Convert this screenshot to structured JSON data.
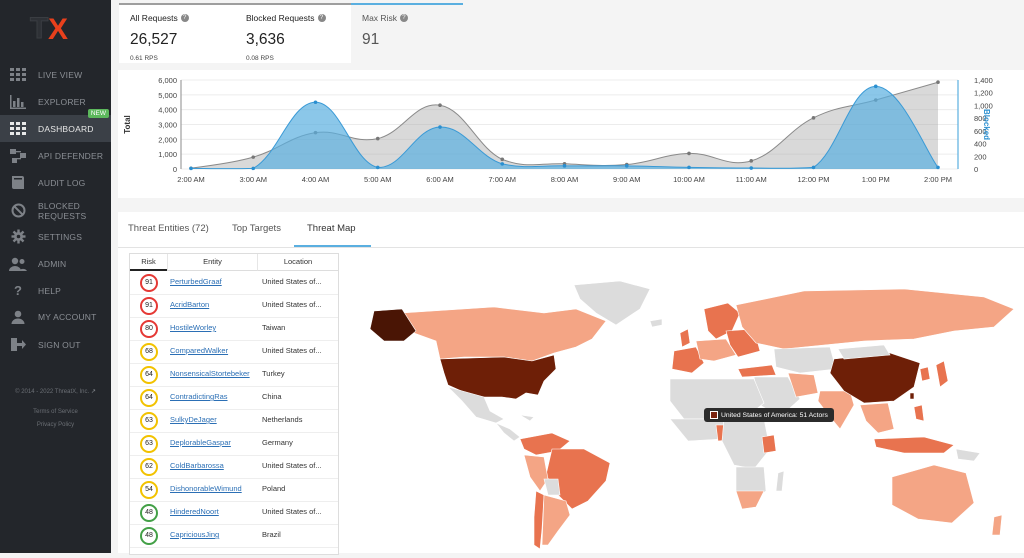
{
  "app": {
    "logo_text": "TX"
  },
  "sidebar": {
    "items": [
      {
        "label": "LIVE VIEW",
        "icon": "grid-icon"
      },
      {
        "label": "EXPLORER",
        "icon": "bar-chart-icon"
      },
      {
        "label": "DASHBOARD",
        "icon": "dashboard-icon",
        "badge": "NEW"
      },
      {
        "label": "API DEFENDER",
        "icon": "api-icon"
      },
      {
        "label": "AUDIT LOG",
        "icon": "book-icon"
      },
      {
        "label": "BLOCKED REQUESTS",
        "icon": "block-icon"
      },
      {
        "label": "SETTINGS",
        "icon": "gear-icon"
      },
      {
        "label": "ADMIN",
        "icon": "users-icon"
      },
      {
        "label": "HELP",
        "icon": "help-icon"
      },
      {
        "label": "MY ACCOUNT",
        "icon": "user-icon"
      },
      {
        "label": "SIGN OUT",
        "icon": "sign-out-icon"
      }
    ],
    "copyright": "© 2014 - 2022 ThreatX, Inc.",
    "terms": "Terms of Service",
    "privacy": "Privacy Policy"
  },
  "stats": {
    "all": {
      "label": "All Requests",
      "value": "26,527",
      "sub": "0.61 RPS"
    },
    "blocked": {
      "label": "Blocked Requests",
      "value": "3,636",
      "sub": "0.08 RPS"
    },
    "max_risk": {
      "label": "Max Risk",
      "value": "91"
    }
  },
  "chart_data": {
    "type": "area",
    "categories": [
      "2:00 AM",
      "3:00 AM",
      "4:00 AM",
      "5:00 AM",
      "6:00 AM",
      "7:00 AM",
      "8:00 AM",
      "9:00 AM",
      "10:00 AM",
      "11:00 AM",
      "12:00 PM",
      "1:00 PM",
      "2:00 PM"
    ],
    "y_left_label": "Total",
    "y_right_label": "Blocked",
    "y_left_ticks": [
      "0",
      "1,000",
      "2,000",
      "3,000",
      "4,000",
      "5,000",
      "6,000"
    ],
    "y_right_ticks": [
      "0",
      "200",
      "400",
      "600",
      "800",
      "1,000",
      "1,200",
      "1,400"
    ],
    "ylim_left": [
      0,
      6000
    ],
    "ylim_right": [
      0,
      1400
    ],
    "series": [
      {
        "name": "Total",
        "axis": "left",
        "color": "#9e9e9e",
        "values": [
          50,
          800,
          2450,
          2050,
          4300,
          650,
          350,
          300,
          1050,
          550,
          3450,
          4650,
          5850
        ]
      },
      {
        "name": "Blocked",
        "axis": "right",
        "color": "#5aafe0",
        "values": [
          10,
          10,
          1050,
          25,
          660,
          80,
          50,
          50,
          25,
          15,
          25,
          1300,
          25
        ]
      }
    ]
  },
  "tabs": [
    {
      "label": "Threat Entities (72)",
      "active": false
    },
    {
      "label": "Top Targets",
      "active": false
    },
    {
      "label": "Threat Map",
      "active": true
    }
  ],
  "table": {
    "headers": {
      "risk": "Risk",
      "entity": "Entity",
      "location": "Location"
    },
    "rows": [
      {
        "risk": "91",
        "entity": "PerturbedGraaf",
        "location": "United States of...",
        "color": "#e53935"
      },
      {
        "risk": "91",
        "entity": "AcridBarton",
        "location": "United States of...",
        "color": "#e53935"
      },
      {
        "risk": "80",
        "entity": "HostileWorley",
        "location": "Taiwan",
        "color": "#e53935"
      },
      {
        "risk": "68",
        "entity": "ComparedWalker",
        "location": "United States of...",
        "color": "#f2c200"
      },
      {
        "risk": "64",
        "entity": "NonsensicalStortebeker",
        "location": "Turkey",
        "color": "#f2c200"
      },
      {
        "risk": "64",
        "entity": "ContradictingRas",
        "location": "China",
        "color": "#f2c200"
      },
      {
        "risk": "63",
        "entity": "SulkyDeJager",
        "location": "Netherlands",
        "color": "#f2c200"
      },
      {
        "risk": "63",
        "entity": "DeplorableGaspar",
        "location": "Germany",
        "color": "#f2c200"
      },
      {
        "risk": "62",
        "entity": "ColdBarbarossa",
        "location": "United States of...",
        "color": "#f2c200"
      },
      {
        "risk": "54",
        "entity": "DishonorableWimund",
        "location": "Poland",
        "color": "#f2c200"
      },
      {
        "risk": "48",
        "entity": "HinderedNoort",
        "location": "United States of...",
        "color": "#43a047"
      },
      {
        "risk": "48",
        "entity": "CapriciousJing",
        "location": "Brazil",
        "color": "#43a047"
      }
    ]
  },
  "map": {
    "tooltip": "United States of America: 51 Actors",
    "colors": {
      "dark": "#6e1f07",
      "darker": "#4a1505",
      "mid": "#e8734f",
      "light": "#f4a585",
      "none": "#dcdcdc"
    }
  }
}
